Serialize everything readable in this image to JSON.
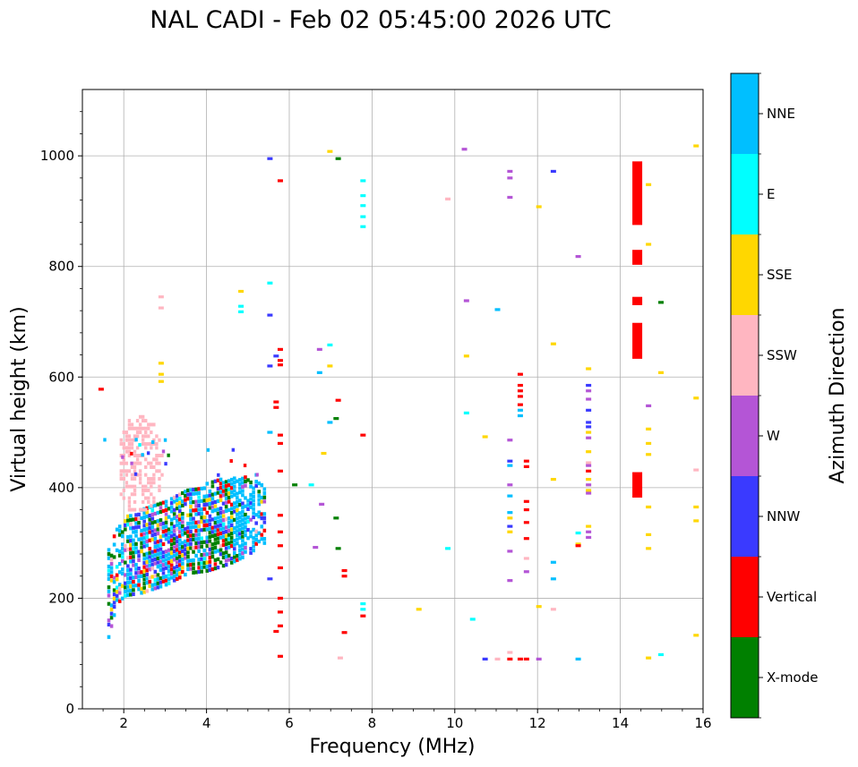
{
  "chart_data": {
    "type": "scatter",
    "title": "NAL CADI - Feb 02 05:45:00 2026 UTC",
    "xlabel": "Frequency (MHz)",
    "ylabel": "Virtual height (km)",
    "xlim": [
      1.0,
      16.0
    ],
    "ylim": [
      0,
      1120
    ],
    "grid": true,
    "x_ticks": [
      {
        "value": 2,
        "label": "2"
      },
      {
        "value": 4,
        "label": "4"
      },
      {
        "value": 6,
        "label": "6"
      },
      {
        "value": 8,
        "label": "8"
      },
      {
        "value": 10,
        "label": "10"
      },
      {
        "value": 12,
        "label": "12"
      },
      {
        "value": 14,
        "label": "14"
      },
      {
        "value": 16,
        "label": "16"
      }
    ],
    "y_ticks": [
      {
        "value": 0,
        "label": "0"
      },
      {
        "value": 200,
        "label": "200"
      },
      {
        "value": 400,
        "label": "400"
      },
      {
        "value": 600,
        "label": "600"
      },
      {
        "value": 800,
        "label": "800"
      },
      {
        "value": 1000,
        "label": "1000"
      }
    ],
    "colorbar": {
      "title": "Azimuth Direction",
      "categories": [
        {
          "label": "X-mode",
          "color": "#008000"
        },
        {
          "label": "Vertical",
          "color": "#ff0000"
        },
        {
          "label": "NNW",
          "color": "#3a3aff"
        },
        {
          "label": "W",
          "color": "#b455d6"
        },
        {
          "label": "SSW",
          "color": "#ffb6c1"
        },
        {
          "label": "SSE",
          "color": "#ffd700"
        },
        {
          "label": "E",
          "color": "#00ffff"
        },
        {
          "label": "NNE",
          "color": "#00bfff"
        }
      ]
    },
    "echo_bars": [
      {
        "f": 1.42,
        "h": 578,
        "dir": "Vertical"
      },
      {
        "f": 2.87,
        "h": 745,
        "dir": "SSW"
      },
      {
        "f": 2.87,
        "h": 725,
        "dir": "SSW"
      },
      {
        "f": 2.87,
        "h": 625,
        "dir": "SSE"
      },
      {
        "f": 2.87,
        "h": 605,
        "dir": "SSE"
      },
      {
        "f": 2.87,
        "h": 592,
        "dir": "SSE"
      },
      {
        "f": 4.8,
        "h": 755,
        "dir": "SSE"
      },
      {
        "f": 4.8,
        "h": 728,
        "dir": "E"
      },
      {
        "f": 4.8,
        "h": 718,
        "dir": "E"
      },
      {
        "f": 5.5,
        "h": 995,
        "dir": "NNW"
      },
      {
        "f": 5.5,
        "h": 770,
        "dir": "E"
      },
      {
        "f": 5.5,
        "h": 712,
        "dir": "NNW"
      },
      {
        "f": 5.5,
        "h": 620,
        "dir": "NNW"
      },
      {
        "f": 5.5,
        "h": 500,
        "dir": "NNE"
      },
      {
        "f": 5.5,
        "h": 235,
        "dir": "NNW"
      },
      {
        "f": 5.65,
        "h": 638,
        "dir": "NNW"
      },
      {
        "f": 5.65,
        "h": 555,
        "dir": "Vertical"
      },
      {
        "f": 5.65,
        "h": 545,
        "dir": "Vertical"
      },
      {
        "f": 5.65,
        "h": 140,
        "dir": "Vertical"
      },
      {
        "f": 5.75,
        "h": 955,
        "dir": "Vertical"
      },
      {
        "f": 5.75,
        "h": 650,
        "dir": "Vertical"
      },
      {
        "f": 5.75,
        "h": 630,
        "dir": "Vertical"
      },
      {
        "f": 5.75,
        "h": 622,
        "dir": "Vertical"
      },
      {
        "f": 5.75,
        "h": 495,
        "dir": "Vertical"
      },
      {
        "f": 5.75,
        "h": 480,
        "dir": "Vertical"
      },
      {
        "f": 5.75,
        "h": 430,
        "dir": "Vertical"
      },
      {
        "f": 5.75,
        "h": 350,
        "dir": "Vertical"
      },
      {
        "f": 5.75,
        "h": 320,
        "dir": "Vertical"
      },
      {
        "f": 5.75,
        "h": 295,
        "dir": "Vertical"
      },
      {
        "f": 5.75,
        "h": 255,
        "dir": "Vertical"
      },
      {
        "f": 5.75,
        "h": 200,
        "dir": "Vertical"
      },
      {
        "f": 5.75,
        "h": 175,
        "dir": "Vertical"
      },
      {
        "f": 5.75,
        "h": 150,
        "dir": "Vertical"
      },
      {
        "f": 5.75,
        "h": 95,
        "dir": "Vertical"
      },
      {
        "f": 6.1,
        "h": 405,
        "dir": "X-mode"
      },
      {
        "f": 6.5,
        "h": 405,
        "dir": "E"
      },
      {
        "f": 6.6,
        "h": 292,
        "dir": "W"
      },
      {
        "f": 6.7,
        "h": 650,
        "dir": "W"
      },
      {
        "f": 6.7,
        "h": 608,
        "dir": "NNE"
      },
      {
        "f": 6.75,
        "h": 370,
        "dir": "W"
      },
      {
        "f": 6.8,
        "h": 462,
        "dir": "SSE"
      },
      {
        "f": 6.95,
        "h": 1008,
        "dir": "SSE"
      },
      {
        "f": 6.95,
        "h": 658,
        "dir": "E"
      },
      {
        "f": 6.95,
        "h": 620,
        "dir": "SSE"
      },
      {
        "f": 6.95,
        "h": 518,
        "dir": "NNE"
      },
      {
        "f": 7.1,
        "h": 525,
        "dir": "X-mode"
      },
      {
        "f": 7.1,
        "h": 345,
        "dir": "X-mode"
      },
      {
        "f": 7.15,
        "h": 995,
        "dir": "X-mode"
      },
      {
        "f": 7.15,
        "h": 558,
        "dir": "Vertical"
      },
      {
        "f": 7.15,
        "h": 290,
        "dir": "X-mode"
      },
      {
        "f": 7.2,
        "h": 92,
        "dir": "SSW"
      },
      {
        "f": 7.3,
        "h": 250,
        "dir": "Vertical"
      },
      {
        "f": 7.3,
        "h": 240,
        "dir": "Vertical"
      },
      {
        "f": 7.3,
        "h": 138,
        "dir": "Vertical"
      },
      {
        "f": 7.75,
        "h": 955,
        "dir": "E"
      },
      {
        "f": 7.75,
        "h": 928,
        "dir": "E"
      },
      {
        "f": 7.75,
        "h": 910,
        "dir": "E"
      },
      {
        "f": 7.75,
        "h": 890,
        "dir": "E"
      },
      {
        "f": 7.75,
        "h": 872,
        "dir": "E"
      },
      {
        "f": 7.75,
        "h": 495,
        "dir": "Vertical"
      },
      {
        "f": 7.75,
        "h": 190,
        "dir": "E"
      },
      {
        "f": 7.75,
        "h": 180,
        "dir": "E"
      },
      {
        "f": 7.75,
        "h": 168,
        "dir": "Vertical"
      },
      {
        "f": 9.1,
        "h": 180,
        "dir": "SSE"
      },
      {
        "f": 9.8,
        "h": 922,
        "dir": "SSW"
      },
      {
        "f": 9.8,
        "h": 290,
        "dir": "E"
      },
      {
        "f": 10.2,
        "h": 1012,
        "dir": "W"
      },
      {
        "f": 10.25,
        "h": 738,
        "dir": "W"
      },
      {
        "f": 10.25,
        "h": 638,
        "dir": "SSE"
      },
      {
        "f": 10.25,
        "h": 535,
        "dir": "E"
      },
      {
        "f": 10.4,
        "h": 162,
        "dir": "E"
      },
      {
        "f": 10.7,
        "h": 492,
        "dir": "SSE"
      },
      {
        "f": 10.7,
        "h": 90,
        "dir": "NNW"
      },
      {
        "f": 11.0,
        "h": 722,
        "dir": "NNE"
      },
      {
        "f": 11.0,
        "h": 90,
        "dir": "SSW"
      },
      {
        "f": 11.3,
        "h": 972,
        "dir": "W"
      },
      {
        "f": 11.3,
        "h": 960,
        "dir": "W"
      },
      {
        "f": 11.3,
        "h": 925,
        "dir": "W"
      },
      {
        "f": 11.3,
        "h": 486,
        "dir": "W"
      },
      {
        "f": 11.3,
        "h": 448,
        "dir": "NNW"
      },
      {
        "f": 11.3,
        "h": 440,
        "dir": "NNE"
      },
      {
        "f": 11.3,
        "h": 405,
        "dir": "W"
      },
      {
        "f": 11.3,
        "h": 385,
        "dir": "NNE"
      },
      {
        "f": 11.3,
        "h": 355,
        "dir": "NNE"
      },
      {
        "f": 11.3,
        "h": 345,
        "dir": "SSE"
      },
      {
        "f": 11.3,
        "h": 330,
        "dir": "NNW"
      },
      {
        "f": 11.3,
        "h": 320,
        "dir": "SSE"
      },
      {
        "f": 11.3,
        "h": 285,
        "dir": "W"
      },
      {
        "f": 11.3,
        "h": 232,
        "dir": "W"
      },
      {
        "f": 11.3,
        "h": 102,
        "dir": "SSW"
      },
      {
        "f": 11.3,
        "h": 90,
        "dir": "Vertical"
      },
      {
        "f": 11.55,
        "h": 605,
        "dir": "Vertical"
      },
      {
        "f": 11.55,
        "h": 585,
        "dir": "Vertical"
      },
      {
        "f": 11.55,
        "h": 575,
        "dir": "Vertical"
      },
      {
        "f": 11.55,
        "h": 565,
        "dir": "Vertical"
      },
      {
        "f": 11.55,
        "h": 550,
        "dir": "Vertical"
      },
      {
        "f": 11.55,
        "h": 540,
        "dir": "NNE"
      },
      {
        "f": 11.55,
        "h": 530,
        "dir": "NNE"
      },
      {
        "f": 11.55,
        "h": 90,
        "dir": "Vertical"
      },
      {
        "f": 11.7,
        "h": 448,
        "dir": "Vertical"
      },
      {
        "f": 11.7,
        "h": 438,
        "dir": "Vertical"
      },
      {
        "f": 11.7,
        "h": 375,
        "dir": "Vertical"
      },
      {
        "f": 11.7,
        "h": 360,
        "dir": "Vertical"
      },
      {
        "f": 11.7,
        "h": 337,
        "dir": "Vertical"
      },
      {
        "f": 11.7,
        "h": 308,
        "dir": "Vertical"
      },
      {
        "f": 11.7,
        "h": 272,
        "dir": "SSW"
      },
      {
        "f": 11.7,
        "h": 248,
        "dir": "W"
      },
      {
        "f": 11.7,
        "h": 90,
        "dir": "Vertical"
      },
      {
        "f": 12.0,
        "h": 908,
        "dir": "SSE"
      },
      {
        "f": 12.0,
        "h": 185,
        "dir": "SSE"
      },
      {
        "f": 12.0,
        "h": 90,
        "dir": "W"
      },
      {
        "f": 12.35,
        "h": 972,
        "dir": "NNW"
      },
      {
        "f": 12.35,
        "h": 660,
        "dir": "SSE"
      },
      {
        "f": 12.35,
        "h": 415,
        "dir": "SSE"
      },
      {
        "f": 12.35,
        "h": 265,
        "dir": "NNE"
      },
      {
        "f": 12.35,
        "h": 235,
        "dir": "NNE"
      },
      {
        "f": 12.35,
        "h": 180,
        "dir": "SSW"
      },
      {
        "f": 12.95,
        "h": 818,
        "dir": "W"
      },
      {
        "f": 12.95,
        "h": 318,
        "dir": "E"
      },
      {
        "f": 12.95,
        "h": 298,
        "dir": "SSE"
      },
      {
        "f": 12.95,
        "h": 295,
        "dir": "Vertical"
      },
      {
        "f": 12.95,
        "h": 90,
        "dir": "NNE"
      },
      {
        "f": 13.2,
        "h": 615,
        "dir": "SSE"
      },
      {
        "f": 13.2,
        "h": 585,
        "dir": "NNW"
      },
      {
        "f": 13.2,
        "h": 575,
        "dir": "W"
      },
      {
        "f": 13.2,
        "h": 560,
        "dir": "W"
      },
      {
        "f": 13.2,
        "h": 540,
        "dir": "NNW"
      },
      {
        "f": 13.2,
        "h": 518,
        "dir": "NNW"
      },
      {
        "f": 13.2,
        "h": 510,
        "dir": "NNW"
      },
      {
        "f": 13.2,
        "h": 500,
        "dir": "SSE"
      },
      {
        "f": 13.2,
        "h": 490,
        "dir": "W"
      },
      {
        "f": 13.2,
        "h": 465,
        "dir": "SSE"
      },
      {
        "f": 13.2,
        "h": 445,
        "dir": "SSW"
      },
      {
        "f": 13.2,
        "h": 440,
        "dir": "W"
      },
      {
        "f": 13.2,
        "h": 430,
        "dir": "Vertical"
      },
      {
        "f": 13.2,
        "h": 415,
        "dir": "SSE"
      },
      {
        "f": 13.2,
        "h": 405,
        "dir": "W"
      },
      {
        "f": 13.2,
        "h": 395,
        "dir": "SSE"
      },
      {
        "f": 13.2,
        "h": 390,
        "dir": "W"
      },
      {
        "f": 13.2,
        "h": 330,
        "dir": "SSE"
      },
      {
        "f": 13.2,
        "h": 320,
        "dir": "W"
      },
      {
        "f": 13.2,
        "h": 310,
        "dir": "W"
      },
      {
        "f": 14.65,
        "h": 948,
        "dir": "SSE"
      },
      {
        "f": 14.65,
        "h": 840,
        "dir": "SSE"
      },
      {
        "f": 14.65,
        "h": 548,
        "dir": "W"
      },
      {
        "f": 14.65,
        "h": 506,
        "dir": "SSE"
      },
      {
        "f": 14.65,
        "h": 480,
        "dir": "SSE"
      },
      {
        "f": 14.65,
        "h": 460,
        "dir": "SSE"
      },
      {
        "f": 14.65,
        "h": 365,
        "dir": "SSE"
      },
      {
        "f": 14.65,
        "h": 315,
        "dir": "SSE"
      },
      {
        "f": 14.65,
        "h": 290,
        "dir": "SSE"
      },
      {
        "f": 14.65,
        "h": 92,
        "dir": "SSE"
      },
      {
        "f": 14.95,
        "h": 735,
        "dir": "X-mode"
      },
      {
        "f": 14.95,
        "h": 608,
        "dir": "SSE"
      },
      {
        "f": 14.95,
        "h": 98,
        "dir": "E"
      },
      {
        "f": 15.8,
        "h": 1018,
        "dir": "SSE"
      },
      {
        "f": 15.8,
        "h": 562,
        "dir": "SSE"
      },
      {
        "f": 15.8,
        "h": 432,
        "dir": "SSW"
      },
      {
        "f": 15.8,
        "h": 365,
        "dir": "SSE"
      },
      {
        "f": 15.8,
        "h": 340,
        "dir": "SSE"
      },
      {
        "f": 15.8,
        "h": 133,
        "dir": "SSE"
      }
    ],
    "tall_segments": [
      {
        "f": 14.4,
        "h_low": 875,
        "h_high": 990,
        "dir": "Vertical"
      },
      {
        "f": 14.4,
        "h_low": 803,
        "h_high": 830,
        "dir": "Vertical"
      },
      {
        "f": 14.4,
        "h_low": 730,
        "h_high": 745,
        "dir": "Vertical"
      },
      {
        "f": 14.4,
        "h_low": 633,
        "h_high": 698,
        "dir": "Vertical"
      },
      {
        "f": 14.4,
        "h_low": 382,
        "h_high": 428,
        "dir": "Vertical"
      }
    ],
    "dense_region": {
      "description_f_range": [
        1.6,
        5.4
      ],
      "trace_lower": [
        [
          1.6,
          130
        ],
        [
          1.8,
          190
        ],
        [
          2.0,
          205
        ],
        [
          2.4,
          210
        ],
        [
          3.0,
          225
        ],
        [
          3.5,
          245
        ],
        [
          4.0,
          250
        ],
        [
          4.5,
          262
        ],
        [
          5.0,
          280
        ],
        [
          5.3,
          300
        ]
      ],
      "trace_upper": [
        [
          1.6,
          290
        ],
        [
          1.8,
          330
        ],
        [
          2.0,
          350
        ],
        [
          2.5,
          365
        ],
        [
          3.0,
          380
        ],
        [
          3.5,
          395
        ],
        [
          4.0,
          410
        ],
        [
          4.5,
          418
        ],
        [
          5.0,
          420
        ],
        [
          5.3,
          410
        ]
      ],
      "composition": [
        {
          "dir": "NNE",
          "weight": 34
        },
        {
          "dir": "NNW",
          "weight": 20
        },
        {
          "dir": "Vertical",
          "weight": 13
        },
        {
          "dir": "X-mode",
          "weight": 12
        },
        {
          "dir": "W",
          "weight": 7
        },
        {
          "dir": "SSE",
          "weight": 6
        },
        {
          "dir": "SSW",
          "weight": 4
        },
        {
          "dir": "E",
          "weight": 4
        }
      ],
      "pink_cloud": {
        "f_range": [
          1.9,
          2.9
        ],
        "h_range": [
          360,
          555
        ],
        "dir": "SSW"
      }
    }
  }
}
